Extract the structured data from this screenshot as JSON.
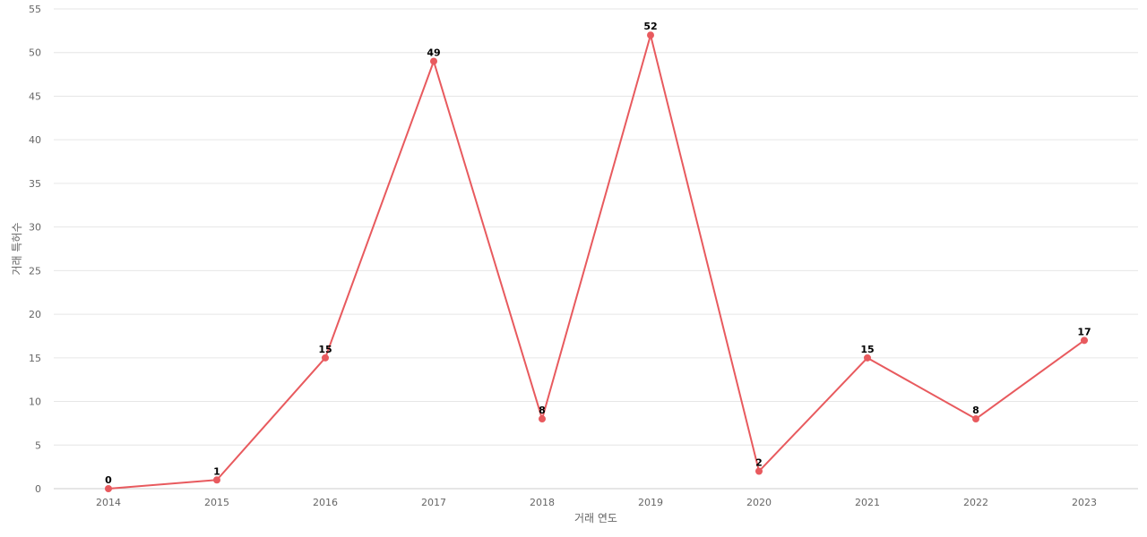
{
  "chart_data": {
    "type": "line",
    "title": "",
    "xlabel": "거래 연도",
    "ylabel": "거래 특허수",
    "x": [
      "2014",
      "2015",
      "2016",
      "2017",
      "2018",
      "2019",
      "2020",
      "2021",
      "2022",
      "2023"
    ],
    "series": [
      {
        "values": [
          0,
          1,
          15,
          49,
          8,
          52,
          2,
          15,
          8,
          17
        ],
        "color": "#e85a5e"
      }
    ],
    "ylim": [
      0,
      55
    ],
    "yticks": [
      0,
      5,
      10,
      15,
      20,
      25,
      30,
      35,
      40,
      45,
      50,
      55
    ],
    "grid": true,
    "legend": "none",
    "data_labels": true
  }
}
